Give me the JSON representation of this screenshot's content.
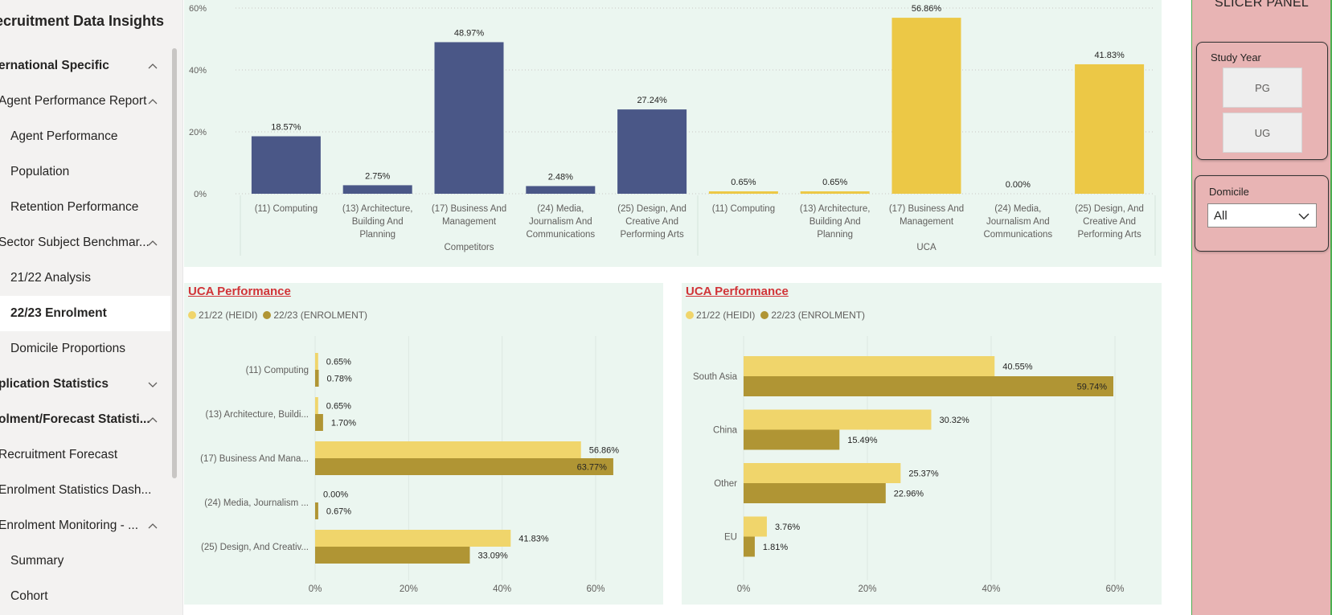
{
  "sidebar": {
    "title": "ecruitment Data Insights",
    "items": [
      {
        "label": "ernational Specific",
        "bold": true,
        "indent": 0,
        "chevron": "up",
        "selected": false
      },
      {
        "label": "Agent Performance Report",
        "bold": false,
        "indent": 0,
        "chevron": "up",
        "selected": false
      },
      {
        "label": "Agent Performance",
        "bold": false,
        "indent": 1,
        "chevron": "",
        "selected": false
      },
      {
        "label": "Population",
        "bold": false,
        "indent": 1,
        "chevron": "",
        "selected": false
      },
      {
        "label": "Retention Performance",
        "bold": false,
        "indent": 1,
        "chevron": "",
        "selected": false
      },
      {
        "label": "Sector Subject Benchmar...",
        "bold": false,
        "indent": 0,
        "chevron": "up",
        "selected": false
      },
      {
        "label": "21/22 Analysis",
        "bold": false,
        "indent": 1,
        "chevron": "",
        "selected": false
      },
      {
        "label": "22/23 Enrolment",
        "bold": true,
        "indent": 1,
        "chevron": "",
        "selected": true
      },
      {
        "label": "Domicile Proportions",
        "bold": false,
        "indent": 1,
        "chevron": "",
        "selected": false
      },
      {
        "label": "plication Statistics",
        "bold": true,
        "indent": 0,
        "chevron": "down",
        "selected": false
      },
      {
        "label": "olment/Forecast Statisti...",
        "bold": true,
        "indent": 0,
        "chevron": "up",
        "selected": false
      },
      {
        "label": "Recruitment Forecast",
        "bold": false,
        "indent": 0,
        "chevron": "",
        "selected": false
      },
      {
        "label": "Enrolment Statistics Dash...",
        "bold": false,
        "indent": 0,
        "chevron": "",
        "selected": false
      },
      {
        "label": "Enrolment Monitoring - ...",
        "bold": false,
        "indent": 0,
        "chevron": "up",
        "selected": false
      },
      {
        "label": "Summary",
        "bold": false,
        "indent": 1,
        "chevron": "",
        "selected": false
      },
      {
        "label": "Cohort",
        "bold": false,
        "indent": 1,
        "chevron": "",
        "selected": false
      }
    ]
  },
  "chart_data": [
    {
      "type": "bar",
      "title": "",
      "ylim": [
        0,
        60
      ],
      "yticks": [
        "0%",
        "20%",
        "40%",
        "60%"
      ],
      "grid": true,
      "groups": [
        {
          "name": "Competitors",
          "color": "#4a5787",
          "categories": [
            [
              "(11) Computing"
            ],
            [
              "(13) Architecture,",
              "Building And",
              "Planning"
            ],
            [
              "(17) Business And",
              "Management"
            ],
            [
              "(24) Media,",
              "Journalism And",
              "Communications"
            ],
            [
              "(25) Design, And",
              "Creative And",
              "Performing Arts"
            ]
          ],
          "values": [
            18.57,
            2.75,
            48.97,
            2.48,
            27.24
          ],
          "labels": [
            "18.57%",
            "2.75%",
            "48.97%",
            "2.48%",
            "27.24%"
          ]
        },
        {
          "name": "UCA",
          "color": "#ecc846",
          "categories": [
            [
              "(11) Computing"
            ],
            [
              "(13) Architecture,",
              "Building And",
              "Planning"
            ],
            [
              "(17) Business And",
              "Management"
            ],
            [
              "(24) Media,",
              "Journalism And",
              "Communications"
            ],
            [
              "(25) Design, And",
              "Creative And",
              "Performing Arts"
            ]
          ],
          "values": [
            0.65,
            0.65,
            56.86,
            0.0,
            41.83
          ],
          "labels": [
            "0.65%",
            "0.65%",
            "56.86%",
            "0.00%",
            "41.83%"
          ]
        }
      ]
    },
    {
      "type": "bar",
      "orientation": "horizontal",
      "title": "UCA Performance",
      "categories": [
        "(11) Computing",
        "(13) Architecture, Buildi...",
        "(17) Business And Mana...",
        "(24) Media, Journalism ...",
        "(25) Design, And Creativ..."
      ],
      "series": [
        {
          "name": "21/22 (HEIDI)",
          "color": "#f0d56b",
          "values": [
            0.65,
            0.65,
            56.86,
            0.0,
            41.83
          ],
          "labels": [
            "0.65%",
            "0.65%",
            "56.86%",
            "0.00%",
            "41.83%"
          ]
        },
        {
          "name": "22/23 (ENROLMENT)",
          "color": "#b09534",
          "values": [
            0.78,
            1.7,
            63.77,
            0.67,
            33.09
          ],
          "labels": [
            "0.78%",
            "1.70%",
            "63.77%",
            "0.67%",
            "33.09%"
          ]
        }
      ],
      "xlim": [
        0,
        70
      ],
      "xticks": [
        0,
        20,
        40,
        60
      ],
      "xtick_labels": [
        "0%",
        "20%",
        "40%",
        "60%"
      ],
      "legend": "top-left"
    },
    {
      "type": "bar",
      "orientation": "horizontal",
      "title": "UCA Performance",
      "categories": [
        "South Asia",
        "China",
        "Other",
        "EU"
      ],
      "series": [
        {
          "name": "21/22 (HEIDI)",
          "color": "#f0d56b",
          "values": [
            40.55,
            30.32,
            25.37,
            3.76
          ],
          "labels": [
            "40.55%",
            "30.32%",
            "25.37%",
            "3.76%"
          ]
        },
        {
          "name": "22/23 (ENROLMENT)",
          "color": "#b09534",
          "values": [
            59.74,
            15.49,
            22.96,
            1.81
          ],
          "labels": [
            "59.74%",
            "15.49%",
            "22.96%",
            "1.81%"
          ]
        }
      ],
      "xlim": [
        0,
        65
      ],
      "xticks": [
        0,
        20,
        40,
        60
      ],
      "xtick_labels": [
        "0%",
        "20%",
        "40%",
        "60%"
      ],
      "legend": "top-left"
    }
  ],
  "slicer": {
    "title": "SLICER PANEL",
    "study_year": {
      "label": "Study Year",
      "options": [
        "PG",
        "UG"
      ]
    },
    "domicile": {
      "label": "Domicile",
      "value": "All"
    }
  },
  "icons": {
    "chevron_up": "chevron-up-icon",
    "chevron_down": "chevron-down-icon"
  }
}
